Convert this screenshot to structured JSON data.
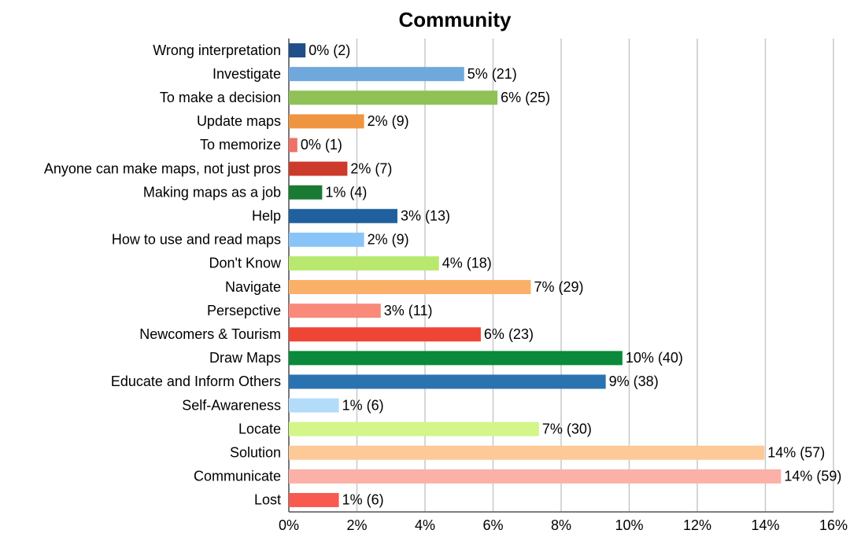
{
  "chart_data": {
    "type": "barh",
    "title": "Community",
    "categories": [
      "Wrong interpretation",
      "Investigate",
      "To make a decision",
      "Update maps",
      "To memorize",
      "Anyone can make maps, not just pros",
      "Making maps as a job",
      "Help",
      "How to use and read maps",
      "Don't Know",
      "Navigate",
      "Persepctive",
      "Newcomers & Tourism",
      "Draw Maps",
      "Educate and Inform Others",
      "Self-Awareness",
      "Locate",
      "Solution",
      "Communicate",
      "Lost"
    ],
    "values": [
      0.49,
      5.15,
      6.13,
      2.21,
      0.25,
      1.72,
      0.98,
      3.19,
      2.21,
      4.41,
      7.11,
      2.7,
      5.64,
      9.8,
      9.31,
      1.47,
      7.35,
      13.97,
      14.46,
      1.47
    ],
    "value_labels": [
      "0% (2)",
      "5% (21)",
      "6% (25)",
      "2% (9)",
      "0% (1)",
      "2% (7)",
      "1% (4)",
      "3% (13)",
      "2% (9)",
      "4% (18)",
      "7% (29)",
      "3% (11)",
      "6% (23)",
      "10% (40)",
      "9% (38)",
      "1% (6)",
      "7% (30)",
      "14% (57)",
      "14% (59)",
      "1% (6)"
    ],
    "colors": [
      "#1f4e89",
      "#6fa8dc",
      "#8fc157",
      "#f0953f",
      "#f07165",
      "#cc3a2c",
      "#1a7a33",
      "#21609e",
      "#88c4f7",
      "#b8e86e",
      "#fbb06a",
      "#f98a7a",
      "#ef4535",
      "#0a8a3a",
      "#2b72b0",
      "#b3dcfb",
      "#d3f58a",
      "#fdc997",
      "#fbb0a8",
      "#f85a4f"
    ],
    "xlim": [
      0,
      16
    ],
    "xticks": [
      {
        "value": 0,
        "label": "0%"
      },
      {
        "value": 2,
        "label": "2%"
      },
      {
        "value": 4,
        "label": "4%"
      },
      {
        "value": 6,
        "label": "6%"
      },
      {
        "value": 8,
        "label": "8%"
      },
      {
        "value": 10,
        "label": "10%"
      },
      {
        "value": 12,
        "label": "12%"
      },
      {
        "value": 14,
        "label": "14%"
      },
      {
        "value": 16,
        "label": "16%"
      }
    ],
    "grid": true
  }
}
